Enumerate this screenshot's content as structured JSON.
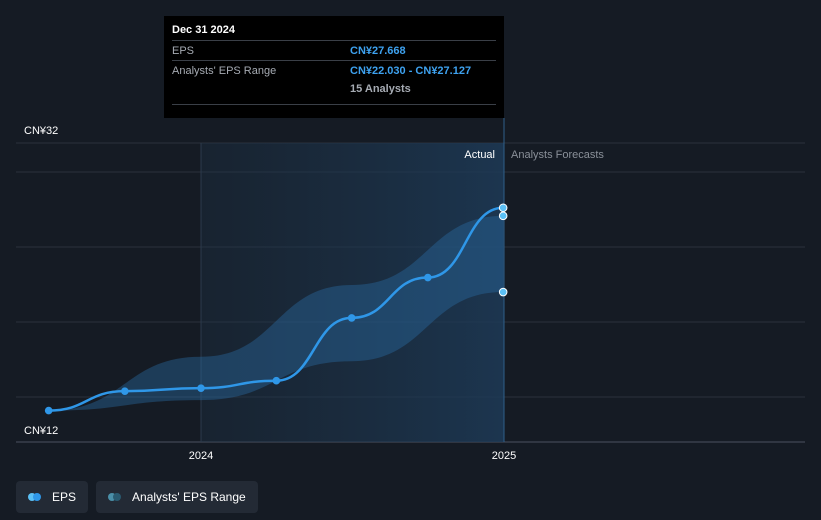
{
  "chart_data": {
    "type": "line",
    "currency": "CN¥",
    "y_axis": {
      "min": 12,
      "max": 32,
      "labels": [
        "CN¥32",
        "CN¥12"
      ]
    },
    "x_axis": {
      "ticks": [
        "2024",
        "2025"
      ]
    },
    "region_labels": {
      "actual": "Actual",
      "forecast": "Analysts Forecasts"
    },
    "series": [
      {
        "name": "EPS",
        "color": "#2f97e8",
        "points": [
          {
            "date": "2023-07-01",
            "value": 14.1
          },
          {
            "date": "2023-10-01",
            "value": 15.4
          },
          {
            "date": "2024-01-01",
            "value": 15.6
          },
          {
            "date": "2024-04-01",
            "value": 16.1
          },
          {
            "date": "2024-07-01",
            "value": 20.3
          },
          {
            "date": "2024-10-01",
            "value": 23.0
          },
          {
            "date": "2024-12-31",
            "value": 27.668
          }
        ]
      }
    ],
    "range": {
      "name": "Analysts' EPS Range",
      "color": "#2f97e8",
      "low": [
        {
          "date": "2023-07-01",
          "value": 14.1
        },
        {
          "date": "2024-01-01",
          "value": 14.8
        },
        {
          "date": "2024-07-01",
          "value": 17.4
        },
        {
          "date": "2024-12-31",
          "value": 22.03
        }
      ],
      "high": [
        {
          "date": "2023-07-01",
          "value": 14.1
        },
        {
          "date": "2024-01-01",
          "value": 17.7
        },
        {
          "date": "2024-07-01",
          "value": 22.5
        },
        {
          "date": "2024-12-31",
          "value": 27.127
        }
      ]
    }
  },
  "tooltip": {
    "date": "Dec 31 2024",
    "eps_label": "EPS",
    "eps_value": "CN¥27.668",
    "range_label": "Analysts' EPS Range",
    "range_value": "CN¥22.030 - CN¥27.127",
    "analysts": "15 Analysts"
  },
  "legend": {
    "eps": "EPS",
    "range": "Analysts' EPS Range",
    "eps_color": "#5bc0f5",
    "range_color": "#4a8fa8"
  }
}
